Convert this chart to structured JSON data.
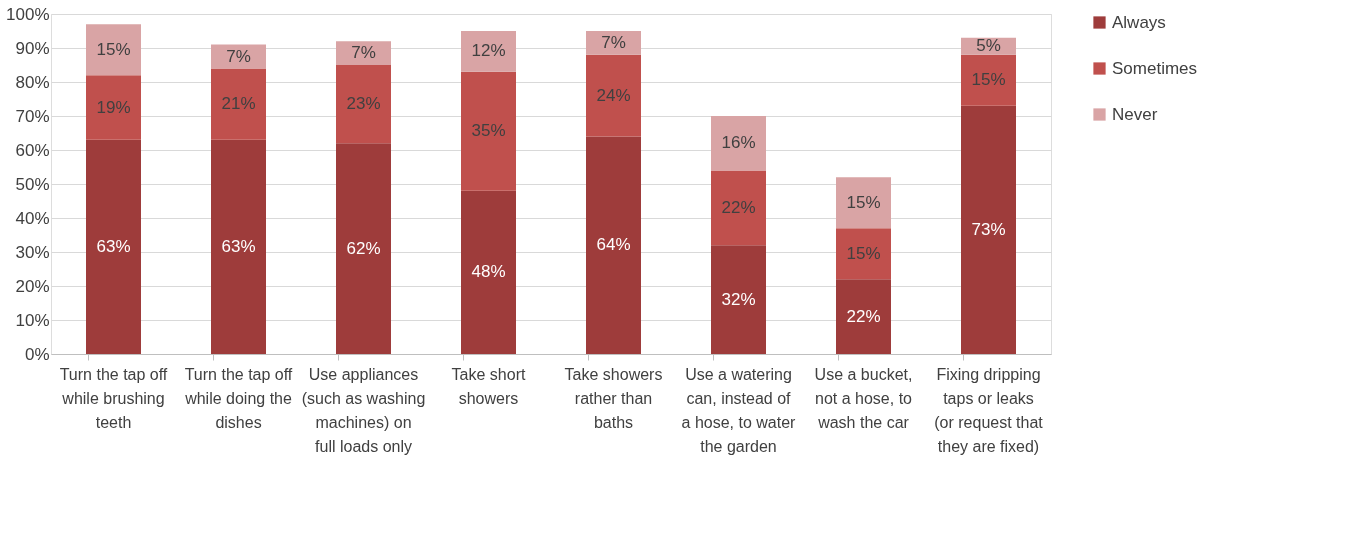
{
  "chart_data": {
    "type": "bar",
    "stacked": true,
    "categories": [
      "Turn the tap off while brushing teeth",
      "Turn the tap off while doing the dishes",
      "Use appliances (such as washing machines) on full loads only",
      "Take short showers",
      "Take showers rather than baths",
      "Use a watering can, instead of a hose, to water the garden",
      "Use a bucket, not a hose, to wash the car",
      "Fixing dripping taps or leaks (or request that they are fixed)"
    ],
    "series": [
      {
        "name": "Always",
        "color": "#9e3c3b",
        "values": [
          63,
          63,
          62,
          48,
          64,
          32,
          22,
          73
        ],
        "value_labels": [
          "63%",
          "63%",
          "62%",
          "48%",
          "64%",
          "32%",
          "22%",
          "73%"
        ]
      },
      {
        "name": "Sometimes",
        "color": "#c0504d",
        "values": [
          19,
          21,
          23,
          35,
          24,
          22,
          15,
          15
        ],
        "value_labels": [
          "19%",
          "21%",
          "23%",
          "35%",
          "24%",
          "22%",
          "15%",
          "15%"
        ]
      },
      {
        "name": "Never",
        "color": "#d9a4a5",
        "values": [
          15,
          7,
          7,
          12,
          7,
          16,
          15,
          5
        ],
        "value_labels": [
          "15%",
          "7%",
          "7%",
          "12%",
          "7%",
          "16%",
          "15%",
          "5%"
        ]
      }
    ],
    "ylim": [
      0,
      100
    ],
    "yticks": [
      {
        "value": 0,
        "label": "0%"
      },
      {
        "value": 10,
        "label": "10%"
      },
      {
        "value": 20,
        "label": "20%"
      },
      {
        "value": 30,
        "label": "30%"
      },
      {
        "value": 40,
        "label": "40%"
      },
      {
        "value": 50,
        "label": "50%"
      },
      {
        "value": 60,
        "label": "60%"
      },
      {
        "value": 70,
        "label": "70%"
      },
      {
        "value": 80,
        "label": "80%"
      },
      {
        "value": 90,
        "label": "90%"
      },
      {
        "value": 100,
        "label": "100%"
      }
    ],
    "grid": "y",
    "legend": "right"
  }
}
